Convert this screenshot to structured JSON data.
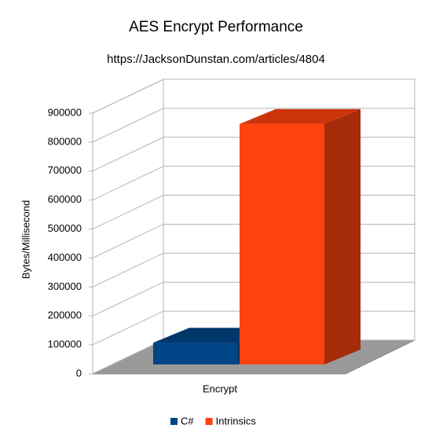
{
  "chart_data": {
    "type": "bar3d",
    "title": "AES Encrypt Performance",
    "subtitle": "https://JacksonDunstan.com/articles/4804",
    "y_label": "Bytes/Millisecond",
    "categories": [
      "Encrypt"
    ],
    "series": [
      {
        "name": "C#",
        "color": "#004586",
        "values": [
          75000
        ]
      },
      {
        "name": "Intrinsics",
        "color": "#ff420e",
        "values": [
          830000
        ]
      }
    ],
    "ylim": [
      0,
      900000
    ],
    "yticks": [
      0,
      100000,
      200000,
      300000,
      400000,
      500000,
      600000,
      700000,
      800000,
      900000
    ],
    "grid": true,
    "legend": "bottom"
  }
}
